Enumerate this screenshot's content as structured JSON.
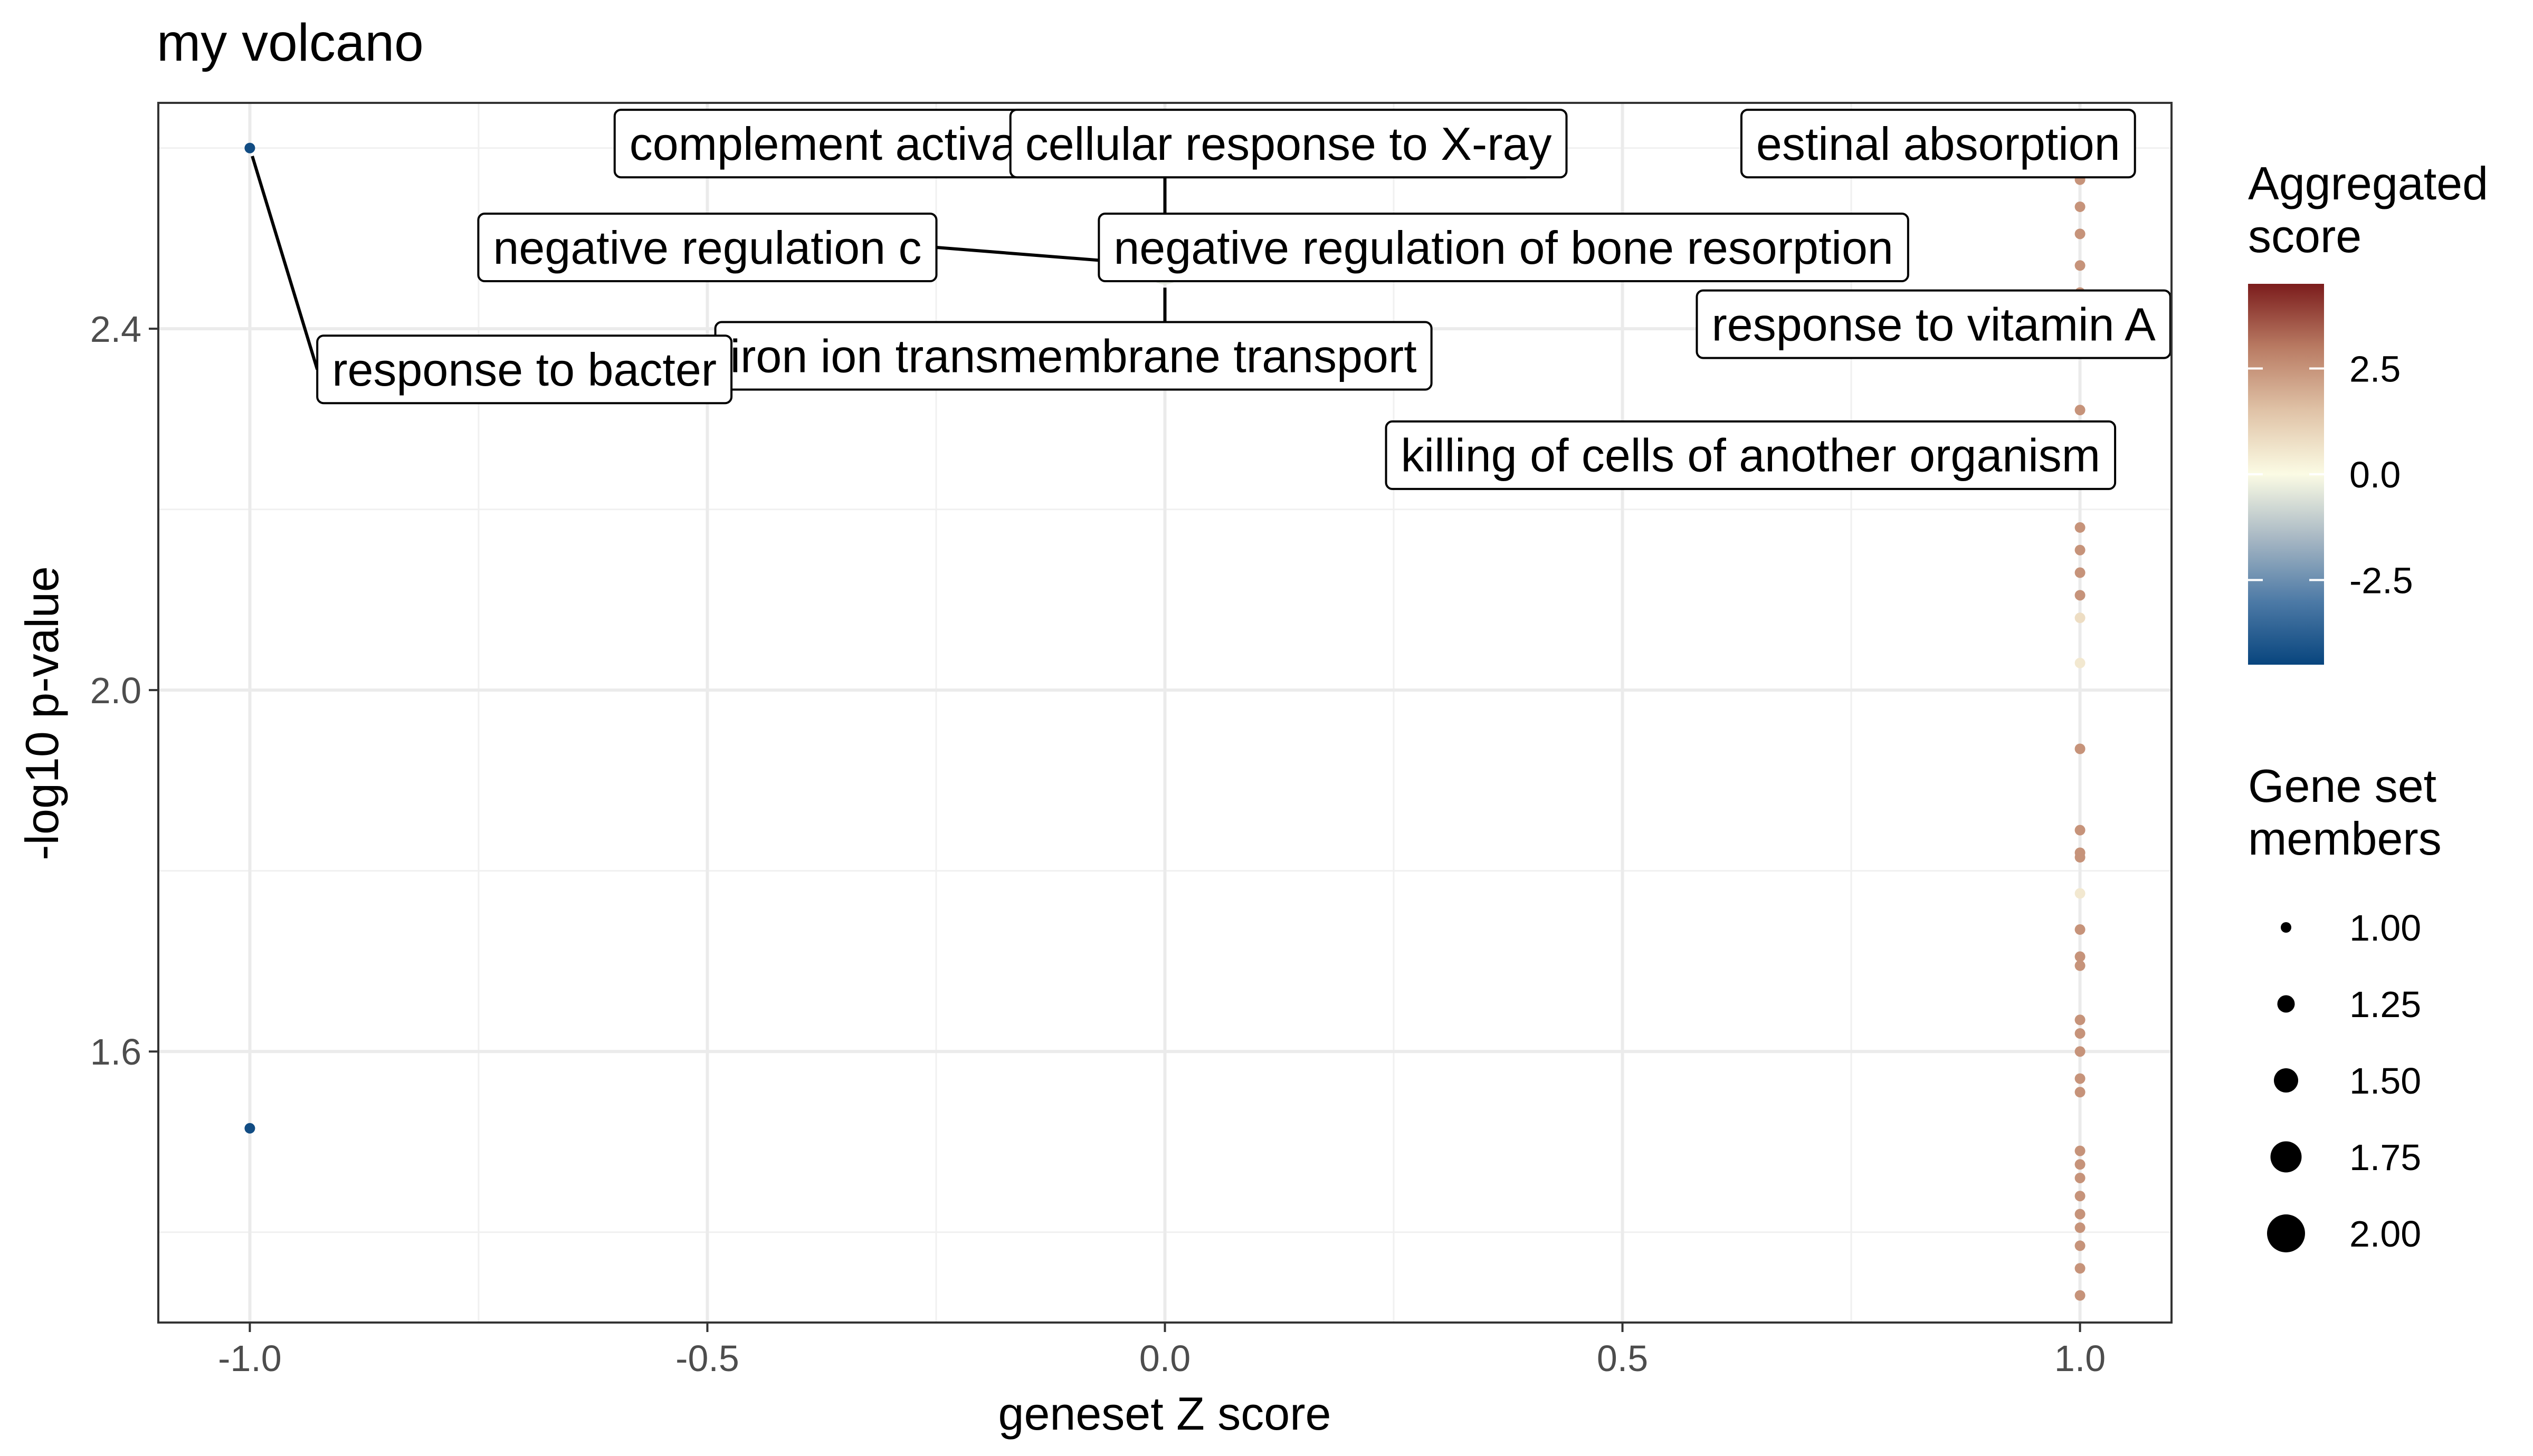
{
  "chart_data": {
    "type": "scatter",
    "title": "my volcano",
    "xlabel": "geneset Z score",
    "ylabel": "-log10 p-value",
    "xlim": [
      -1.1,
      1.1
    ],
    "ylim": [
      1.3,
      2.65
    ],
    "x_ticks": [
      -1.0,
      -0.5,
      0.0,
      0.5,
      1.0
    ],
    "x_tick_labels": [
      "-1.0",
      "-0.5",
      "0.0",
      "0.5",
      "1.0"
    ],
    "y_ticks": [
      1.6,
      2.0,
      2.4
    ],
    "y_tick_labels": [
      "1.6",
      "2.0",
      "2.4"
    ],
    "grid": true,
    "legend_position": "right",
    "color_legend": {
      "title_lines": [
        "Aggregated",
        "score"
      ],
      "min": -4.5,
      "max": 4.5,
      "ticks": [
        2.5,
        0.0,
        -2.5
      ],
      "tick_labels": [
        "2.5",
        "0.0",
        "-2.5"
      ],
      "colors": [
        "#08457e",
        "#4d7aa6",
        "#a8b8c4",
        "#fbfbe4",
        "#e0c3a7",
        "#b97b63",
        "#7b1c1c"
      ]
    },
    "size_legend": {
      "title_lines": [
        "Gene set",
        "members"
      ],
      "values": [
        1.0,
        1.25,
        1.5,
        1.75,
        2.0
      ],
      "labels": [
        "1.00",
        "1.25",
        "1.50",
        "1.75",
        "2.00"
      ]
    },
    "points": [
      {
        "x": -1.0,
        "y": 2.6,
        "score": -4.3,
        "size": 1
      },
      {
        "x": -1.0,
        "y": 1.515,
        "score": -4.3,
        "size": 1
      },
      {
        "x": 0.0,
        "y": 2.47,
        "score": -0.5,
        "size": 2
      },
      {
        "x": 1.0,
        "y": 2.6,
        "score": 2.5,
        "size": 1
      },
      {
        "x": 1.0,
        "y": 2.565,
        "score": 2.5,
        "size": 1
      },
      {
        "x": 1.0,
        "y": 2.535,
        "score": 2.5,
        "size": 1
      },
      {
        "x": 1.0,
        "y": 2.505,
        "score": 2.5,
        "size": 1
      },
      {
        "x": 1.0,
        "y": 2.47,
        "score": 2.5,
        "size": 1
      },
      {
        "x": 1.0,
        "y": 2.44,
        "score": 2.5,
        "size": 1
      },
      {
        "x": 1.0,
        "y": 2.385,
        "score": 2.5,
        "size": 1
      },
      {
        "x": 1.0,
        "y": 2.31,
        "score": 2.5,
        "size": 1
      },
      {
        "x": 1.0,
        "y": 2.28,
        "score": 2.5,
        "size": 1
      },
      {
        "x": 1.0,
        "y": 2.235,
        "score": 2.5,
        "size": 1
      },
      {
        "x": 1.0,
        "y": 2.18,
        "score": 2.5,
        "size": 1
      },
      {
        "x": 1.0,
        "y": 2.155,
        "score": 2.5,
        "size": 1
      },
      {
        "x": 1.0,
        "y": 2.13,
        "score": 2.5,
        "size": 1
      },
      {
        "x": 1.0,
        "y": 2.105,
        "score": 2.5,
        "size": 1
      },
      {
        "x": 1.0,
        "y": 2.08,
        "score": 0.8,
        "size": 1
      },
      {
        "x": 1.0,
        "y": 2.03,
        "score": 0.5,
        "size": 1
      },
      {
        "x": 1.0,
        "y": 1.935,
        "score": 2.5,
        "size": 1
      },
      {
        "x": 1.0,
        "y": 1.845,
        "score": 2.5,
        "size": 1
      },
      {
        "x": 1.0,
        "y": 1.82,
        "score": 2.5,
        "size": 1
      },
      {
        "x": 1.0,
        "y": 1.815,
        "score": 2.5,
        "size": 1
      },
      {
        "x": 1.0,
        "y": 1.775,
        "score": 0.5,
        "size": 1
      },
      {
        "x": 1.0,
        "y": 1.735,
        "score": 2.5,
        "size": 1
      },
      {
        "x": 1.0,
        "y": 1.705,
        "score": 2.5,
        "size": 1
      },
      {
        "x": 1.0,
        "y": 1.695,
        "score": 2.5,
        "size": 1
      },
      {
        "x": 1.0,
        "y": 1.635,
        "score": 2.5,
        "size": 1
      },
      {
        "x": 1.0,
        "y": 1.62,
        "score": 2.5,
        "size": 1
      },
      {
        "x": 1.0,
        "y": 1.6,
        "score": 2.5,
        "size": 1
      },
      {
        "x": 1.0,
        "y": 1.57,
        "score": 2.5,
        "size": 1
      },
      {
        "x": 1.0,
        "y": 1.555,
        "score": 2.5,
        "size": 1
      },
      {
        "x": 1.0,
        "y": 1.49,
        "score": 2.5,
        "size": 1
      },
      {
        "x": 1.0,
        "y": 1.475,
        "score": 2.5,
        "size": 1
      },
      {
        "x": 1.0,
        "y": 1.46,
        "score": 2.5,
        "size": 1
      },
      {
        "x": 1.0,
        "y": 1.44,
        "score": 2.5,
        "size": 1
      },
      {
        "x": 1.0,
        "y": 1.42,
        "score": 2.5,
        "size": 1
      },
      {
        "x": 1.0,
        "y": 1.405,
        "score": 2.5,
        "size": 1
      },
      {
        "x": 1.0,
        "y": 1.385,
        "score": 2.5,
        "size": 1
      },
      {
        "x": 1.0,
        "y": 1.36,
        "score": 2.5,
        "size": 1
      },
      {
        "x": 1.0,
        "y": 1.33,
        "score": 2.5,
        "size": 1
      }
    ],
    "annotations": [
      {
        "text": "complement activation, alternative pathway",
        "x": -0.1,
        "y": 2.605
      },
      {
        "text": "cellular response to X-ray",
        "x": 0.135,
        "y": 2.605
      },
      {
        "text": "estinal absorption",
        "x": 0.845,
        "y": 2.605
      },
      {
        "text": "negative regulation c",
        "x": -0.5,
        "y": 2.49
      },
      {
        "text": "negative regulation of bone resorption",
        "x": 0.37,
        "y": 2.49
      },
      {
        "text": "response to vitamin A",
        "x": 0.84,
        "y": 2.405
      },
      {
        "text": "iron ion transmembrane transport",
        "x": -0.1,
        "y": 2.37
      },
      {
        "text": "response to bacter",
        "x": -0.7,
        "y": 2.355
      },
      {
        "text": "killing of cells of another organism",
        "x": 0.64,
        "y": 2.26
      }
    ]
  }
}
